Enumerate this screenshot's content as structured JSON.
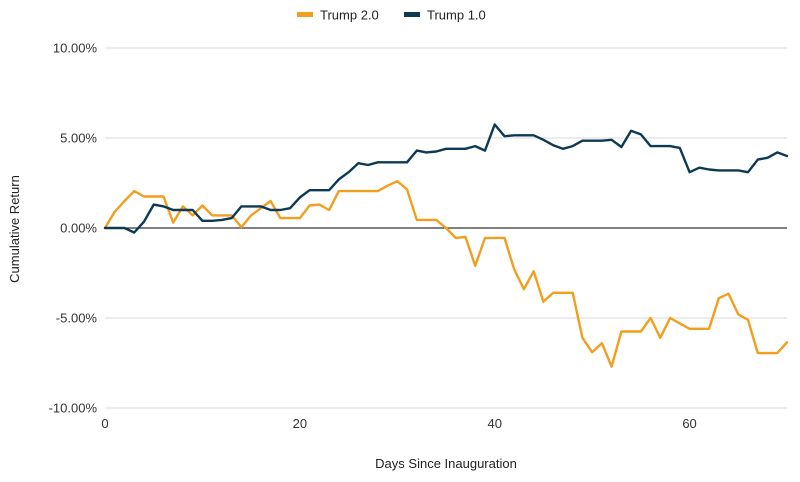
{
  "chart_data": {
    "type": "line",
    "xlabel": "Days Since Inauguration",
    "ylabel": "Cumulative Return",
    "xlim": [
      0,
      70
    ],
    "ylim": [
      -10,
      10
    ],
    "x_ticks": [
      0,
      20,
      40,
      60
    ],
    "y_ticks": [
      10,
      5,
      0,
      -5,
      -10
    ],
    "y_tick_labels": [
      "10.00%",
      "5.00%",
      "0.00%",
      "-5.00%",
      "-10.00%"
    ],
    "grid": "horizontal",
    "legend_position": "top-center",
    "series": [
      {
        "name": "Trump 2.0",
        "color": "#F29E1F",
        "points": [
          [
            0,
            0
          ],
          [
            1,
            0.9
          ],
          [
            2,
            1.5
          ],
          [
            3,
            2.05
          ],
          [
            4,
            1.75
          ],
          [
            5,
            1.75
          ],
          [
            6,
            1.75
          ],
          [
            7,
            0.3
          ],
          [
            8,
            1.2
          ],
          [
            9,
            0.7
          ],
          [
            10,
            1.25
          ],
          [
            11,
            0.7
          ],
          [
            12,
            0.7
          ],
          [
            13,
            0.7
          ],
          [
            14,
            0.05
          ],
          [
            15,
            0.7
          ],
          [
            16,
            1.1
          ],
          [
            17,
            1.5
          ],
          [
            18,
            0.55
          ],
          [
            19,
            0.55
          ],
          [
            20,
            0.55
          ],
          [
            21,
            1.25
          ],
          [
            22,
            1.3
          ],
          [
            23,
            1.0
          ],
          [
            24,
            2.05
          ],
          [
            25,
            2.05
          ],
          [
            26,
            2.05
          ],
          [
            27,
            2.05
          ],
          [
            28,
            2.05
          ],
          [
            29,
            2.35
          ],
          [
            30,
            2.6
          ],
          [
            31,
            2.15
          ],
          [
            32,
            0.45
          ],
          [
            33,
            0.45
          ],
          [
            34,
            0.45
          ],
          [
            35,
            0.0
          ],
          [
            36,
            -0.55
          ],
          [
            37,
            -0.5
          ],
          [
            38,
            -2.1
          ],
          [
            39,
            -0.55
          ],
          [
            40,
            -0.55
          ],
          [
            41,
            -0.55
          ],
          [
            42,
            -2.3
          ],
          [
            43,
            -3.4
          ],
          [
            44,
            -2.4
          ],
          [
            45,
            -4.1
          ],
          [
            46,
            -3.6
          ],
          [
            47,
            -3.6
          ],
          [
            48,
            -3.6
          ],
          [
            49,
            -6.1
          ],
          [
            50,
            -6.9
          ],
          [
            51,
            -6.4
          ],
          [
            52,
            -7.7
          ],
          [
            53,
            -5.75
          ],
          [
            54,
            -5.75
          ],
          [
            55,
            -5.75
          ],
          [
            56,
            -5.0
          ],
          [
            57,
            -6.1
          ],
          [
            58,
            -5.0
          ],
          [
            59,
            -5.3
          ],
          [
            60,
            -5.6
          ],
          [
            61,
            -5.6
          ],
          [
            62,
            -5.6
          ],
          [
            63,
            -3.9
          ],
          [
            64,
            -3.65
          ],
          [
            65,
            -4.8
          ],
          [
            66,
            -5.1
          ],
          [
            67,
            -6.95
          ],
          [
            68,
            -6.95
          ],
          [
            69,
            -6.95
          ],
          [
            70,
            -6.35
          ]
        ]
      },
      {
        "name": "Trump 1.0",
        "color": "#0D3A52",
        "points": [
          [
            0,
            0
          ],
          [
            1,
            0
          ],
          [
            2,
            0
          ],
          [
            3,
            -0.25
          ],
          [
            4,
            0.35
          ],
          [
            5,
            1.3
          ],
          [
            6,
            1.2
          ],
          [
            7,
            1.0
          ],
          [
            8,
            1.0
          ],
          [
            9,
            1.0
          ],
          [
            10,
            0.4
          ],
          [
            11,
            0.4
          ],
          [
            12,
            0.45
          ],
          [
            13,
            0.55
          ],
          [
            14,
            1.2
          ],
          [
            15,
            1.2
          ],
          [
            16,
            1.2
          ],
          [
            17,
            1.0
          ],
          [
            18,
            1.0
          ],
          [
            19,
            1.1
          ],
          [
            20,
            1.7
          ],
          [
            21,
            2.1
          ],
          [
            22,
            2.1
          ],
          [
            23,
            2.1
          ],
          [
            24,
            2.7
          ],
          [
            25,
            3.1
          ],
          [
            26,
            3.6
          ],
          [
            27,
            3.5
          ],
          [
            28,
            3.65
          ],
          [
            29,
            3.65
          ],
          [
            30,
            3.65
          ],
          [
            31,
            3.65
          ],
          [
            32,
            4.3
          ],
          [
            33,
            4.2
          ],
          [
            34,
            4.25
          ],
          [
            35,
            4.4
          ],
          [
            36,
            4.4
          ],
          [
            37,
            4.4
          ],
          [
            38,
            4.55
          ],
          [
            39,
            4.3
          ],
          [
            40,
            5.75
          ],
          [
            41,
            5.1
          ],
          [
            42,
            5.15
          ],
          [
            43,
            5.15
          ],
          [
            44,
            5.15
          ],
          [
            45,
            4.9
          ],
          [
            46,
            4.6
          ],
          [
            47,
            4.4
          ],
          [
            48,
            4.55
          ],
          [
            49,
            4.85
          ],
          [
            50,
            4.85
          ],
          [
            51,
            4.85
          ],
          [
            52,
            4.9
          ],
          [
            53,
            4.5
          ],
          [
            54,
            5.4
          ],
          [
            55,
            5.2
          ],
          [
            56,
            4.55
          ],
          [
            57,
            4.55
          ],
          [
            58,
            4.55
          ],
          [
            59,
            4.45
          ],
          [
            60,
            3.1
          ],
          [
            61,
            3.35
          ],
          [
            62,
            3.25
          ],
          [
            63,
            3.2
          ],
          [
            64,
            3.2
          ],
          [
            65,
            3.2
          ],
          [
            66,
            3.1
          ],
          [
            67,
            3.8
          ],
          [
            68,
            3.9
          ],
          [
            69,
            4.2
          ],
          [
            70,
            4.0
          ]
        ]
      }
    ]
  }
}
